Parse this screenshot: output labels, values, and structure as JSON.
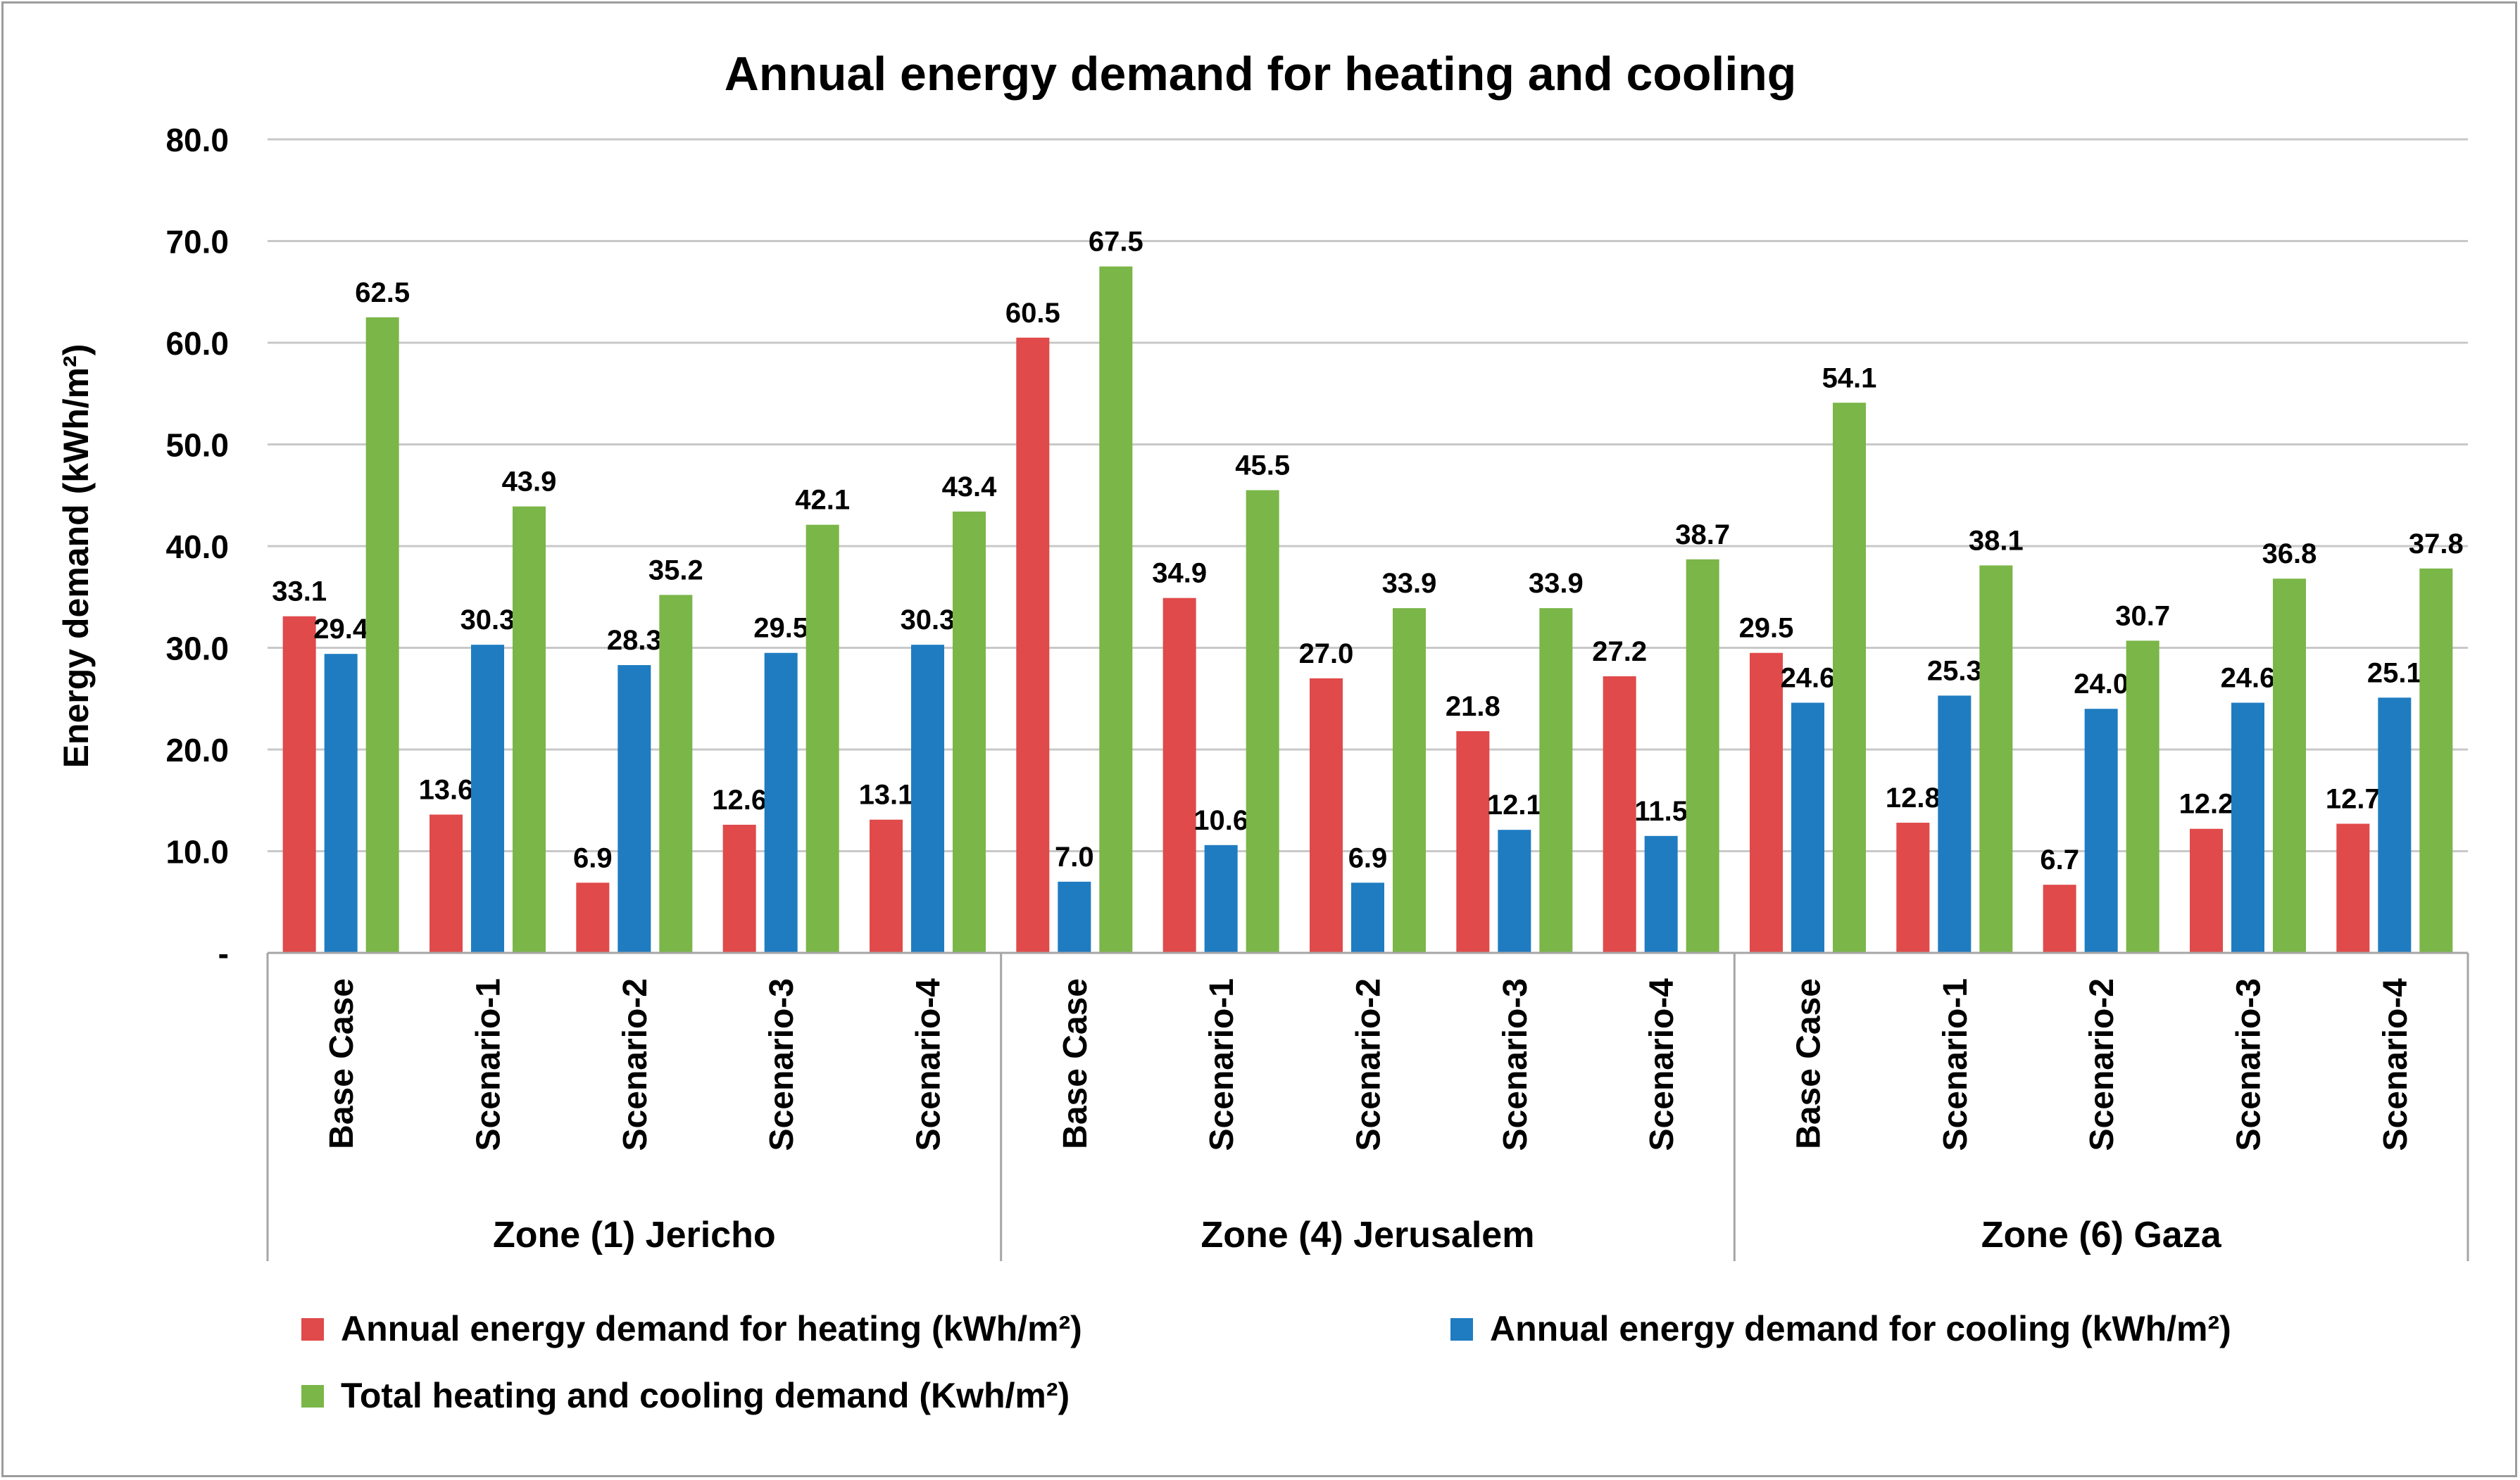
{
  "chart_data": {
    "type": "bar",
    "title": "Annual energy demand for heating and cooling",
    "ylabel": "Energy demand (kWh/m²)",
    "xlabel": "",
    "ylim": [
      0,
      80
    ],
    "yticks": [
      0,
      10,
      20,
      30,
      40,
      50,
      60,
      70,
      80
    ],
    "ytick_labels": [
      "-",
      "10.0",
      "20.0",
      "30.0",
      "40.0",
      "50.0",
      "60.0",
      "70.0",
      "80.0"
    ],
    "grid": true,
    "legend_position": "bottom",
    "groups": [
      {
        "label": "Zone (1) Jericho",
        "categories": [
          "Base Case",
          "Scenario-1",
          "Scenario-2",
          "Scenario-3",
          "Scenario-4"
        ]
      },
      {
        "label": "Zone (4) Jerusalem",
        "categories": [
          "Base Case",
          "Scenario-1",
          "Scenario-2",
          "Scenario-3",
          "Scenario-4"
        ]
      },
      {
        "label": "Zone (6) Gaza",
        "categories": [
          "Base Case",
          "Scenario-1",
          "Scenario-2",
          "Scenario-3",
          "Scenario-4"
        ]
      }
    ],
    "series": [
      {
        "name": "Annual energy demand for heating (kWh/m²)",
        "color": "#e04a4a",
        "values": [
          33.1,
          13.6,
          6.9,
          12.6,
          13.1,
          60.5,
          34.9,
          27.0,
          21.8,
          27.2,
          29.5,
          12.8,
          6.7,
          12.2,
          12.7
        ]
      },
      {
        "name": "Annual energy demand for cooling (kWh/m²)",
        "color": "#1f7cc1",
        "values": [
          29.4,
          30.3,
          28.3,
          29.5,
          30.3,
          7.0,
          10.6,
          6.9,
          12.1,
          11.5,
          24.6,
          25.3,
          24.0,
          24.6,
          25.1
        ]
      },
      {
        "name": "Total heating and cooling demand (Kwh/m²)",
        "color": "#7ab648",
        "values": [
          62.5,
          43.9,
          35.2,
          42.1,
          43.4,
          67.5,
          45.5,
          33.9,
          33.9,
          38.7,
          54.1,
          38.1,
          30.7,
          36.8,
          37.8
        ]
      }
    ]
  }
}
